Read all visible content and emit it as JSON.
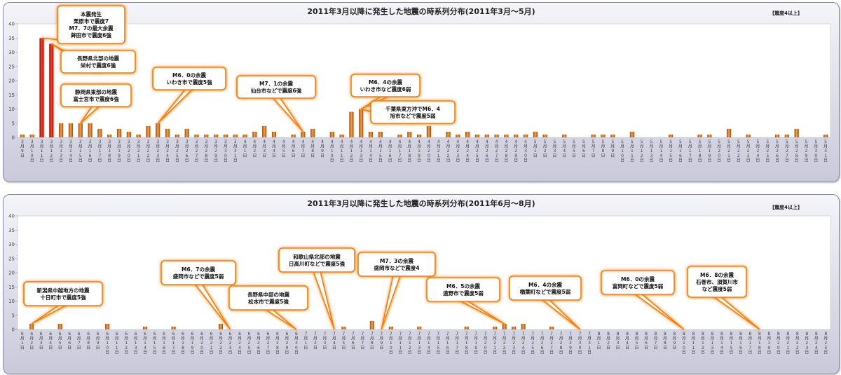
{
  "chart_data": [
    {
      "type": "bar",
      "title": "2011年3月以降に発生した地震の時系列分布(2011年3月～5月)",
      "badge": "【震度4以上】",
      "ylim": [
        0,
        40
      ],
      "yticks": [
        "0",
        "5",
        "10",
        "15",
        "20",
        "25",
        "30",
        "35",
        "40"
      ],
      "grid": false,
      "categories": [
        "3月9日",
        "3月10日",
        "3月11日",
        "3月12日",
        "3月13日",
        "3月14日",
        "3月15日",
        "3月16日",
        "3月17日",
        "3月18日",
        "3月19日",
        "3月20日",
        "3月21日",
        "3月22日",
        "3月23日",
        "3月24日",
        "3月25日",
        "3月26日",
        "3月27日",
        "3月28日",
        "3月29日",
        "3月30日",
        "3月31日",
        "4月1日",
        "4月2日",
        "4月3日",
        "4月4日",
        "4月5日",
        "4月6日",
        "4月7日",
        "4月8日",
        "4月9日",
        "4月10日",
        "4月11日",
        "4月12日",
        "4月13日",
        "4月14日",
        "4月15日",
        "4月16日",
        "4月17日",
        "4月18日",
        "4月19日",
        "4月20日",
        "4月21日",
        "4月22日",
        "4月23日",
        "4月24日",
        "4月25日",
        "4月26日",
        "4月27日",
        "4月28日",
        "4月29日",
        "4月30日",
        "5月1日",
        "5月2日",
        "5月3日",
        "5月4日",
        "5月5日",
        "5月6日",
        "5月7日",
        "5月8日",
        "5月9日",
        "5月10日",
        "5月11日",
        "5月12日",
        "5月13日",
        "5月14日",
        "5月15日",
        "5月16日",
        "5月17日",
        "5月18日",
        "5月19日",
        "5月20日",
        "5月21日",
        "5月22日",
        "5月23日",
        "5月24日",
        "5月25日",
        "5月26日",
        "5月27日",
        "5月28日",
        "5月29日",
        "5月30日",
        "5月31日"
      ],
      "values": [
        1,
        1,
        35,
        33,
        5,
        5,
        5,
        5,
        3,
        1,
        3,
        2,
        1,
        4,
        5,
        3,
        1,
        3,
        1,
        1,
        1,
        1,
        1,
        1,
        2,
        4,
        2,
        0,
        1,
        2,
        3,
        0,
        2,
        1,
        9,
        10,
        2,
        2,
        0,
        1,
        2,
        1,
        4,
        0,
        2,
        1,
        2,
        1,
        1,
        1,
        1,
        1,
        1,
        2,
        1,
        0,
        1,
        0,
        0,
        1,
        1,
        1,
        0,
        2,
        0,
        0,
        0,
        1,
        0,
        0,
        1,
        1,
        0,
        3,
        0,
        1,
        0,
        0,
        1,
        1,
        3,
        0,
        0,
        1
      ],
      "callouts": [
        {
          "bar": 2,
          "lines": [
            "本震発生",
            "栗原市で震度7",
            "M7．7の最大余震",
            "鉾田市で震度6強"
          ]
        },
        {
          "bar": 3,
          "lines": [
            "長野県北部の地震",
            "栄村で震度6強"
          ]
        },
        {
          "bar": 6,
          "lines": [
            "静岡県東部の地震",
            "富士宮市で震度6強"
          ]
        },
        {
          "bar": 14,
          "lines": [
            "M6．0の余震",
            "いわき市で震度5強"
          ]
        },
        {
          "bar": 29,
          "lines": [
            "M7．1の余震",
            "仙台市などで震度6強"
          ]
        },
        {
          "bar": 35,
          "lines": [
            "M6．4の余震",
            "いわき市など震度6弱"
          ]
        },
        {
          "bar": 35,
          "lines": [
            "千葉県東方沖でM6．4",
            "旭市などで震度5弱"
          ]
        }
      ]
    },
    {
      "type": "bar",
      "title": "2011年3月以降に発生した地震の時系列分布(2011年6月～8月)",
      "badge": "【震度4以上】",
      "ylim": [
        0,
        40
      ],
      "yticks": [
        "0",
        "5",
        "10",
        "15",
        "20",
        "25",
        "30",
        "35",
        "40"
      ],
      "grid": false,
      "categories": [
        "6月1日",
        "6月2日",
        "6月3日",
        "6月4日",
        "6月5日",
        "6月6日",
        "6月7日",
        "6月8日",
        "6月9日",
        "6月10日",
        "6月11日",
        "6月12日",
        "6月13日",
        "6月14日",
        "6月15日",
        "6月16日",
        "6月17日",
        "6月18日",
        "6月19日",
        "6月20日",
        "6月21日",
        "6月22日",
        "6月23日",
        "6月24日",
        "6月25日",
        "6月26日",
        "6月27日",
        "6月28日",
        "6月29日",
        "6月30日",
        "7月1日",
        "7月2日",
        "7月3日",
        "7月4日",
        "7月5日",
        "7月6日",
        "7月7日",
        "7月8日",
        "7月9日",
        "7月10日",
        "7月11日",
        "7月12日",
        "7月13日",
        "7月14日",
        "7月15日",
        "7月16日",
        "7月17日",
        "7月18日",
        "7月19日",
        "7月20日",
        "7月21日",
        "7月22日",
        "7月23日",
        "7月24日",
        "7月25日",
        "7月26日",
        "7月27日",
        "7月28日",
        "7月29日",
        "7月30日",
        "7月31日",
        "8月1日",
        "8月2日",
        "8月3日",
        "8月4日",
        "8月5日",
        "8月6日",
        "8月7日",
        "8月8日",
        "8月9日",
        "8月10日",
        "8月11日",
        "8月12日",
        "8月13日",
        "8月14日",
        "8月15日",
        "8月16日",
        "8月17日",
        "8月18日",
        "8月19日",
        "8月20日",
        "8月21日",
        "8月22日",
        "8月23日",
        "8月24日",
        "8月25日"
      ],
      "values": [
        0,
        2,
        0,
        0,
        2,
        0,
        0,
        0,
        0,
        2,
        0,
        0,
        0,
        1,
        0,
        0,
        1,
        0,
        0,
        0,
        0,
        2,
        0,
        0,
        0,
        0,
        0,
        0,
        0,
        0,
        0,
        0,
        0,
        0,
        1,
        0,
        0,
        3,
        0,
        1,
        0,
        0,
        1,
        0,
        0,
        0,
        0,
        1,
        0,
        0,
        1,
        2,
        1,
        2,
        0,
        0,
        1,
        0,
        0,
        0,
        0,
        0,
        0,
        0,
        0,
        0,
        0,
        0,
        0,
        0,
        0,
        0,
        0,
        0,
        0,
        0,
        0,
        0,
        0,
        0,
        0,
        0,
        0,
        0,
        0,
        0
      ],
      "callouts": [
        {
          "bar": 1,
          "lines": [
            "新潟県中越地方の地震",
            "十日町市で震度5強"
          ]
        },
        {
          "bar": 22,
          "lines": [
            "M6．7の余震",
            "盛岡市などで震度5弱"
          ]
        },
        {
          "bar": 29,
          "lines": [
            "長野県中部の地震",
            "松本市で震度5強"
          ]
        },
        {
          "bar": 33,
          "lines": [
            "和歌山県北部の地震",
            "日高川町などで震度5強"
          ]
        },
        {
          "bar": 38,
          "lines": [
            "M7．3の余震",
            "盛岡市などで震度4"
          ]
        },
        {
          "bar": 51,
          "lines": [
            "M6．5の余震",
            "遠野市で震度5弱"
          ]
        },
        {
          "bar": 59,
          "lines": [
            "M6．4の余震",
            "楢葉町などで震度5弱"
          ]
        },
        {
          "bar": 70,
          "lines": [
            "M6．0の余震",
            "富岡町などで震度5弱"
          ]
        },
        {
          "bar": 78,
          "lines": [
            "M6．8の余震",
            "石巻市、須賀川市",
            "など震度5弱"
          ]
        }
      ]
    }
  ]
}
